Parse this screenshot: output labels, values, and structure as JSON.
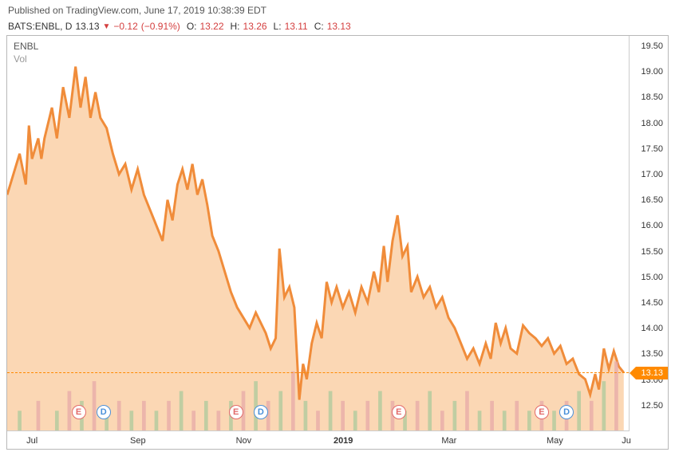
{
  "header": {
    "published": "Published on TradingView.com, June 17, 2019 10:38:39 EDT",
    "symbol": "BATS:ENBL, D",
    "price": "13.13",
    "change": "−0.12",
    "changePct": "(−0.91%)",
    "o_lbl": "O:",
    "o": "13.22",
    "h_lbl": "H:",
    "h": "13.26",
    "l_lbl": "L:",
    "l": "13.11",
    "c_lbl": "C:",
    "c": "13.13"
  },
  "legend": {
    "line1": "ENBL",
    "line2": "Vol"
  },
  "chart": {
    "type": "area",
    "ylim": [
      12.0,
      19.7
    ],
    "ytick_step": 0.5,
    "yticks": [
      19.5,
      19.0,
      18.5,
      18.0,
      17.5,
      17.0,
      16.5,
      16.0,
      15.5,
      15.0,
      14.5,
      14.0,
      13.5,
      13.0,
      12.5
    ],
    "flag_value": 13.13,
    "line_color": "#f08c3a",
    "fill_color": "#f9c99b",
    "fill_opacity": 0.75,
    "background": "#ffffff",
    "dash_color": "#ff8a00",
    "xticks": [
      {
        "pos": 0.04,
        "label": "Jul"
      },
      {
        "pos": 0.21,
        "label": "Sep"
      },
      {
        "pos": 0.38,
        "label": "Nov"
      },
      {
        "pos": 0.54,
        "label": "2019",
        "bold": true
      },
      {
        "pos": 0.71,
        "label": "Mar"
      },
      {
        "pos": 0.88,
        "label": "May"
      },
      {
        "pos": 0.995,
        "label": "Ju"
      }
    ],
    "markers": [
      {
        "type": "E",
        "x": 0.115
      },
      {
        "type": "D",
        "x": 0.155
      },
      {
        "type": "E",
        "x": 0.368
      },
      {
        "type": "D",
        "x": 0.408
      },
      {
        "type": "E",
        "x": 0.63
      },
      {
        "type": "E",
        "x": 0.86
      },
      {
        "type": "D",
        "x": 0.9
      }
    ],
    "series": [
      [
        0.0,
        16.6
      ],
      [
        0.01,
        17.0
      ],
      [
        0.02,
        17.4
      ],
      [
        0.03,
        16.8
      ],
      [
        0.035,
        17.95
      ],
      [
        0.04,
        17.3
      ],
      [
        0.05,
        17.7
      ],
      [
        0.055,
        17.3
      ],
      [
        0.06,
        17.7
      ],
      [
        0.072,
        18.3
      ],
      [
        0.08,
        17.7
      ],
      [
        0.09,
        18.7
      ],
      [
        0.1,
        18.1
      ],
      [
        0.11,
        19.1
      ],
      [
        0.118,
        18.3
      ],
      [
        0.126,
        18.9
      ],
      [
        0.134,
        18.1
      ],
      [
        0.142,
        18.6
      ],
      [
        0.15,
        18.1
      ],
      [
        0.16,
        17.9
      ],
      [
        0.17,
        17.4
      ],
      [
        0.18,
        17.0
      ],
      [
        0.19,
        17.2
      ],
      [
        0.2,
        16.7
      ],
      [
        0.21,
        17.1
      ],
      [
        0.22,
        16.6
      ],
      [
        0.23,
        16.3
      ],
      [
        0.24,
        16.0
      ],
      [
        0.25,
        15.7
      ],
      [
        0.258,
        16.5
      ],
      [
        0.266,
        16.1
      ],
      [
        0.274,
        16.8
      ],
      [
        0.282,
        17.1
      ],
      [
        0.29,
        16.7
      ],
      [
        0.298,
        17.2
      ],
      [
        0.306,
        16.6
      ],
      [
        0.314,
        16.9
      ],
      [
        0.322,
        16.4
      ],
      [
        0.33,
        15.8
      ],
      [
        0.34,
        15.5
      ],
      [
        0.35,
        15.1
      ],
      [
        0.36,
        14.7
      ],
      [
        0.37,
        14.4
      ],
      [
        0.38,
        14.2
      ],
      [
        0.39,
        14.0
      ],
      [
        0.4,
        14.3
      ],
      [
        0.408,
        14.1
      ],
      [
        0.416,
        13.9
      ],
      [
        0.424,
        13.6
      ],
      [
        0.432,
        13.8
      ],
      [
        0.438,
        15.55
      ],
      [
        0.446,
        14.6
      ],
      [
        0.454,
        14.8
      ],
      [
        0.462,
        14.4
      ],
      [
        0.47,
        12.6
      ],
      [
        0.476,
        13.3
      ],
      [
        0.482,
        13.0
      ],
      [
        0.49,
        13.7
      ],
      [
        0.498,
        14.1
      ],
      [
        0.506,
        13.8
      ],
      [
        0.514,
        14.9
      ],
      [
        0.522,
        14.5
      ],
      [
        0.53,
        14.8
      ],
      [
        0.54,
        14.4
      ],
      [
        0.55,
        14.7
      ],
      [
        0.56,
        14.3
      ],
      [
        0.57,
        14.8
      ],
      [
        0.58,
        14.5
      ],
      [
        0.59,
        15.1
      ],
      [
        0.598,
        14.7
      ],
      [
        0.606,
        15.6
      ],
      [
        0.612,
        14.9
      ],
      [
        0.62,
        15.7
      ],
      [
        0.628,
        16.2
      ],
      [
        0.636,
        15.4
      ],
      [
        0.644,
        15.6
      ],
      [
        0.65,
        14.7
      ],
      [
        0.66,
        15.0
      ],
      [
        0.67,
        14.6
      ],
      [
        0.68,
        14.8
      ],
      [
        0.69,
        14.4
      ],
      [
        0.7,
        14.6
      ],
      [
        0.71,
        14.2
      ],
      [
        0.72,
        14.0
      ],
      [
        0.73,
        13.7
      ],
      [
        0.74,
        13.4
      ],
      [
        0.75,
        13.6
      ],
      [
        0.76,
        13.3
      ],
      [
        0.77,
        13.7
      ],
      [
        0.778,
        13.4
      ],
      [
        0.786,
        14.1
      ],
      [
        0.794,
        13.7
      ],
      [
        0.802,
        14.0
      ],
      [
        0.81,
        13.6
      ],
      [
        0.82,
        13.5
      ],
      [
        0.83,
        14.05
      ],
      [
        0.84,
        13.9
      ],
      [
        0.85,
        13.8
      ],
      [
        0.86,
        13.65
      ],
      [
        0.87,
        13.8
      ],
      [
        0.88,
        13.5
      ],
      [
        0.89,
        13.65
      ],
      [
        0.9,
        13.3
      ],
      [
        0.91,
        13.4
      ],
      [
        0.92,
        13.1
      ],
      [
        0.93,
        13.0
      ],
      [
        0.938,
        12.7
      ],
      [
        0.946,
        13.1
      ],
      [
        0.952,
        12.8
      ],
      [
        0.96,
        13.6
      ],
      [
        0.968,
        13.2
      ],
      [
        0.976,
        13.55
      ],
      [
        0.984,
        13.25
      ],
      [
        0.992,
        13.13
      ]
    ],
    "volume": [
      [
        0.02,
        2
      ],
      [
        0.05,
        3
      ],
      [
        0.08,
        2
      ],
      [
        0.1,
        4
      ],
      [
        0.12,
        3
      ],
      [
        0.14,
        5
      ],
      [
        0.16,
        2
      ],
      [
        0.18,
        3
      ],
      [
        0.2,
        2
      ],
      [
        0.22,
        3
      ],
      [
        0.24,
        2
      ],
      [
        0.26,
        3
      ],
      [
        0.28,
        4
      ],
      [
        0.3,
        2
      ],
      [
        0.32,
        3
      ],
      [
        0.34,
        2
      ],
      [
        0.36,
        3
      ],
      [
        0.38,
        4
      ],
      [
        0.4,
        5
      ],
      [
        0.42,
        3
      ],
      [
        0.44,
        4
      ],
      [
        0.46,
        6
      ],
      [
        0.48,
        3
      ],
      [
        0.5,
        2
      ],
      [
        0.52,
        4
      ],
      [
        0.54,
        3
      ],
      [
        0.56,
        2
      ],
      [
        0.58,
        3
      ],
      [
        0.6,
        4
      ],
      [
        0.62,
        3
      ],
      [
        0.64,
        2
      ],
      [
        0.66,
        3
      ],
      [
        0.68,
        4
      ],
      [
        0.7,
        2
      ],
      [
        0.72,
        3
      ],
      [
        0.74,
        4
      ],
      [
        0.76,
        2
      ],
      [
        0.78,
        3
      ],
      [
        0.8,
        2
      ],
      [
        0.82,
        3
      ],
      [
        0.84,
        2
      ],
      [
        0.86,
        3
      ],
      [
        0.88,
        2
      ],
      [
        0.9,
        3
      ],
      [
        0.92,
        4
      ],
      [
        0.94,
        3
      ],
      [
        0.96,
        5
      ],
      [
        0.98,
        7
      ]
    ],
    "volume_max": 40,
    "volume_up_color": "#a7c99a",
    "volume_down_color": "#e6a6a6"
  }
}
